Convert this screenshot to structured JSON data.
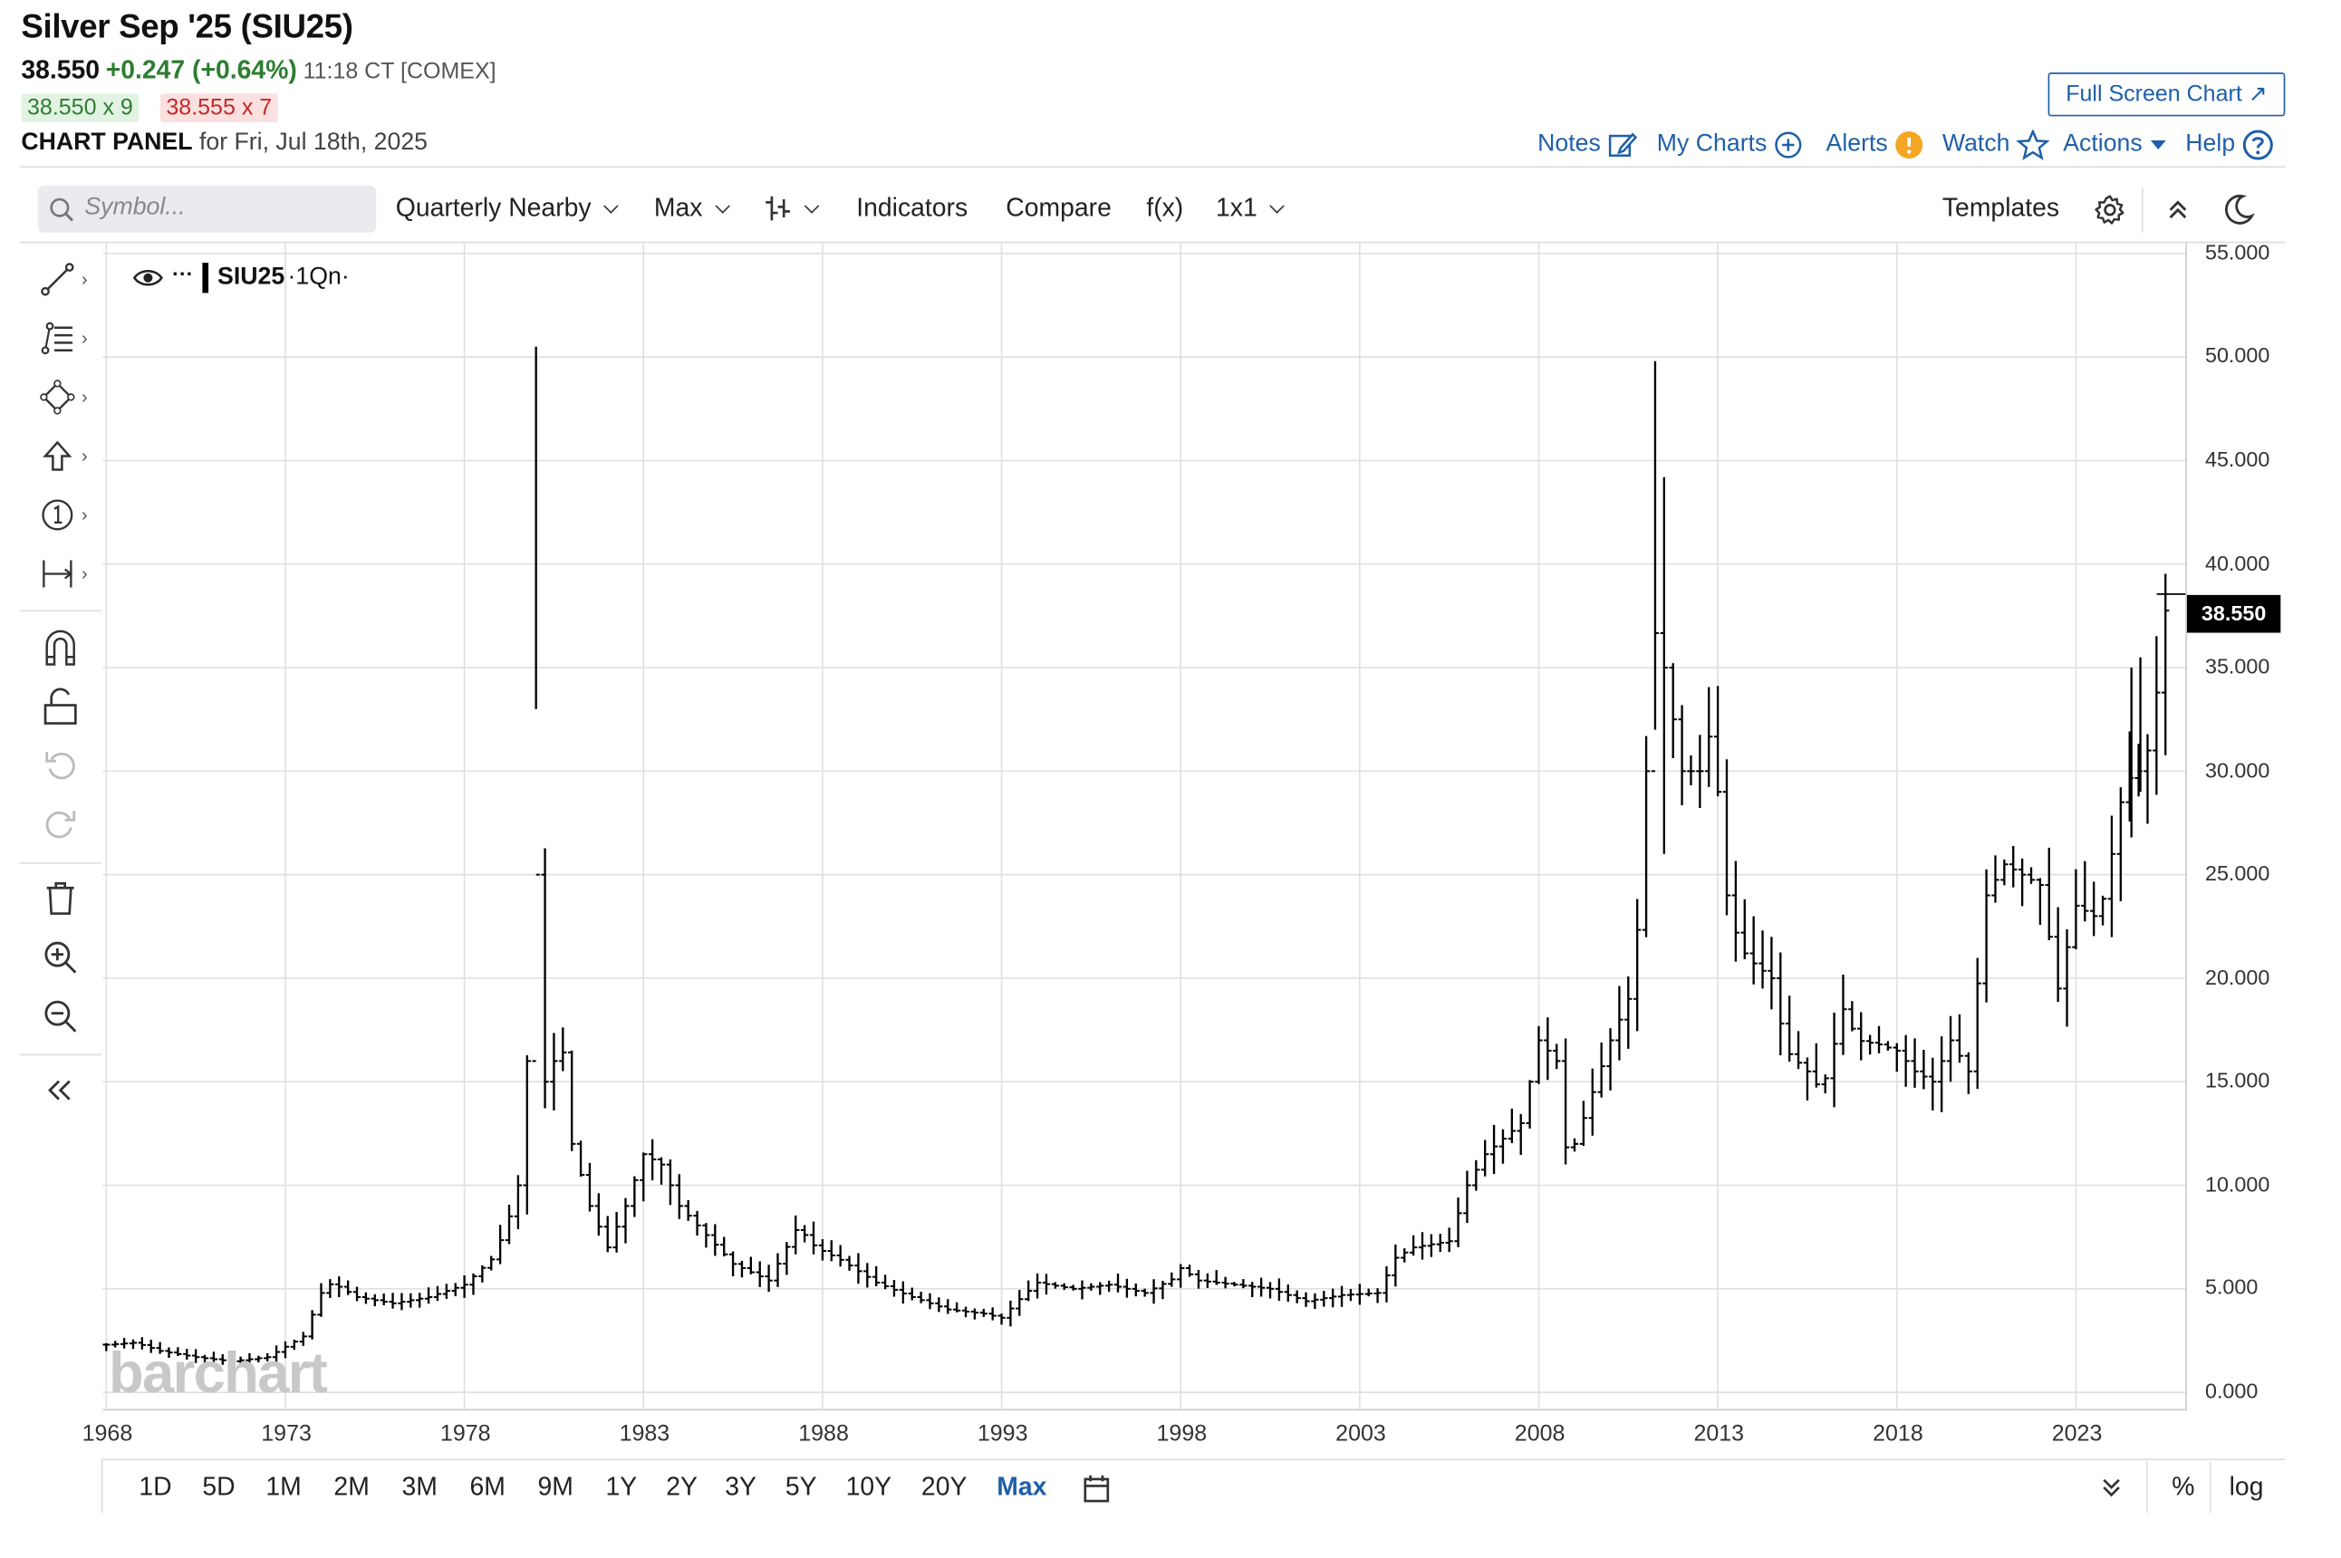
{
  "header": {
    "title": "Silver Sep '25 (SIU25)",
    "last": "38.550",
    "change": "+0.247 (+0.64%)",
    "time": "11:18 CT [COMEX]",
    "bid": "38.550 x 9",
    "ask": "38.555 x 7",
    "panel_label": "CHART PANEL",
    "panel_date": "for Fri, Jul 18th, 2025",
    "full_screen": "Full Screen Chart ↗",
    "notes": "Notes",
    "my_charts": "My Charts",
    "alerts": "Alerts",
    "watch": "Watch",
    "actions": "Actions",
    "help": "Help"
  },
  "toolbar": {
    "search_placeholder": "Symbol...",
    "period": "Quarterly Nearby",
    "range": "Max",
    "indicators": "Indicators",
    "compare": "Compare",
    "fx": "f(x)",
    "layout": "1x1",
    "templates": "Templates"
  },
  "legend": {
    "symbol": "SIU25",
    "interval": "·1Qn·"
  },
  "price_tag": "38.550",
  "watermark": "barchart",
  "bottom": {
    "ranges": [
      "1D",
      "5D",
      "1M",
      "2M",
      "3M",
      "6M",
      "9M",
      "1Y",
      "2Y",
      "3Y",
      "5Y",
      "10Y",
      "20Y",
      "Max"
    ],
    "active": "Max",
    "percent": "%",
    "log": "log"
  },
  "colors": {
    "accent": "#1f5fa8",
    "up": "#2e7d32",
    "down": "#c62828",
    "bars": "#000000"
  },
  "chart_data": {
    "type": "ohlc",
    "interval": "quarterly",
    "y_ticks": [
      "55.000",
      "50.000",
      "45.000",
      "40.000",
      "35.000",
      "30.000",
      "25.000",
      "20.000",
      "15.000",
      "10.000",
      "5.000",
      "0.000"
    ],
    "x_ticks": [
      "1968",
      "1973",
      "1978",
      "1983",
      "1988",
      "1993",
      "1998",
      "2003",
      "2008",
      "2013",
      "2018",
      "2023"
    ],
    "ylim": [
      -0.8,
      55.5
    ],
    "xlim": [
      1967.9,
      2026.1
    ],
    "grid": true,
    "series": [
      {
        "keypoints": [
          [
            1968.0,
            2.3
          ],
          [
            1968.8,
            2.4
          ],
          [
            1969.5,
            2.0
          ],
          [
            1970.5,
            1.7
          ],
          [
            1971.5,
            1.5
          ],
          [
            1972.5,
            1.7
          ],
          [
            1973.5,
            2.7
          ],
          [
            1974.0,
            4.8
          ],
          [
            1974.3,
            5.3
          ],
          [
            1975.0,
            4.6
          ],
          [
            1976.0,
            4.3
          ],
          [
            1977.0,
            4.6
          ],
          [
            1978.0,
            5.2
          ],
          [
            1978.8,
            6.5
          ],
          [
            1979.2,
            8.2
          ],
          [
            1979.5,
            10.0
          ],
          [
            1979.75,
            16.0
          ],
          [
            1980.0,
            25.0
          ],
          [
            1980.25,
            15.0
          ],
          [
            1980.5,
            16.0
          ],
          [
            1980.8,
            16.5
          ],
          [
            1981.0,
            12.0
          ],
          [
            1981.5,
            9.0
          ],
          [
            1982.0,
            7.0
          ],
          [
            1982.5,
            9.0
          ],
          [
            1983.0,
            11.5
          ],
          [
            1983.5,
            11.0
          ],
          [
            1984.0,
            9.0
          ],
          [
            1984.8,
            7.5
          ],
          [
            1985.5,
            6.2
          ],
          [
            1986.5,
            5.4
          ],
          [
            1987.3,
            8.0
          ],
          [
            1987.8,
            7.0
          ],
          [
            1988.5,
            6.4
          ],
          [
            1989.5,
            5.3
          ],
          [
            1990.5,
            4.6
          ],
          [
            1991.5,
            4.0
          ],
          [
            1992.5,
            3.8
          ],
          [
            1993.0,
            3.6
          ],
          [
            1993.5,
            4.5
          ],
          [
            1994.0,
            5.3
          ],
          [
            1995.0,
            5.0
          ],
          [
            1996.0,
            5.2
          ],
          [
            1997.0,
            4.8
          ],
          [
            1997.8,
            5.5
          ],
          [
            1998.0,
            6.0
          ],
          [
            1998.5,
            5.4
          ],
          [
            1999.5,
            5.2
          ],
          [
            2000.5,
            5.0
          ],
          [
            2001.5,
            4.4
          ],
          [
            2002.5,
            4.7
          ],
          [
            2003.5,
            4.8
          ],
          [
            2004.0,
            6.5
          ],
          [
            2004.5,
            7.0
          ],
          [
            2005.5,
            7.3
          ],
          [
            2006.0,
            10.0
          ],
          [
            2006.5,
            11.5
          ],
          [
            2007.5,
            13.0
          ],
          [
            2008.0,
            17.0
          ],
          [
            2008.5,
            16.0
          ],
          [
            2008.8,
            11.0
          ],
          [
            2009.0,
            12.0
          ],
          [
            2009.5,
            14.5
          ],
          [
            2010.0,
            17.0
          ],
          [
            2010.5,
            19.0
          ],
          [
            2010.8,
            23.0
          ],
          [
            2011.2,
            37.0
          ],
          [
            2011.5,
            35.0
          ],
          [
            2011.8,
            32.0
          ],
          [
            2012.0,
            30.0
          ],
          [
            2012.5,
            30.0
          ],
          [
            2012.8,
            32.0
          ],
          [
            2013.0,
            29.0
          ],
          [
            2013.3,
            23.0
          ],
          [
            2013.8,
            21.0
          ],
          [
            2014.5,
            20.0
          ],
          [
            2014.9,
            16.5
          ],
          [
            2015.5,
            15.5
          ],
          [
            2015.9,
            14.5
          ],
          [
            2016.5,
            18.5
          ],
          [
            2016.9,
            17.0
          ],
          [
            2017.5,
            16.8
          ],
          [
            2018.0,
            16.5
          ],
          [
            2018.5,
            15.5
          ],
          [
            2019.0,
            15.0
          ],
          [
            2019.5,
            17.0
          ],
          [
            2020.0,
            15.5
          ],
          [
            2020.5,
            24.0
          ],
          [
            2021.0,
            25.5
          ],
          [
            2021.5,
            25.0
          ],
          [
            2022.0,
            24.5
          ],
          [
            2022.5,
            19.5
          ],
          [
            2023.0,
            23.5
          ],
          [
            2023.5,
            23.0
          ],
          [
            2023.8,
            24.0
          ],
          [
            2024.3,
            29.0
          ],
          [
            2024.6,
            30.0
          ],
          [
            2024.9,
            30.0
          ],
          [
            2025.2,
            33.0
          ],
          [
            2025.55,
            38.55
          ]
        ],
        "spikes": [
          {
            "year": 2024.55,
            "high": 35.0,
            "low": 26.8
          },
          {
            "year": 2024.8,
            "high": 35.5,
            "low": 29.0
          }
        ]
      }
    ]
  }
}
